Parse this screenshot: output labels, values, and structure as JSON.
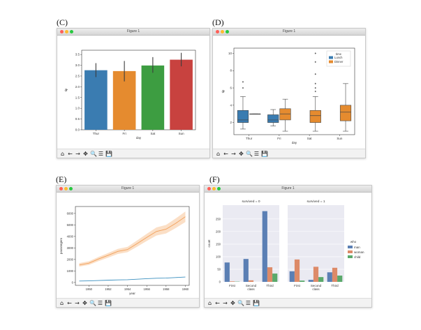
{
  "panels": {
    "C": {
      "label": "(C)",
      "window_title": "Figure 1",
      "chart_data": {
        "type": "bar",
        "categories": [
          "Thur",
          "Fri",
          "Sat",
          "Sun"
        ],
        "values": [
          2.77,
          2.73,
          2.99,
          3.26
        ],
        "ci": [
          [
            2.45,
            3.1
          ],
          [
            2.25,
            3.2
          ],
          [
            2.65,
            3.38
          ],
          [
            2.95,
            3.58
          ]
        ],
        "colors": [
          "#3a7cb1",
          "#e58b2f",
          "#3d9d41",
          "#c8423f"
        ],
        "xlabel": "day",
        "ylabel": "tip",
        "ylim": [
          0,
          3.7
        ],
        "yticks": [
          "0.0",
          "0.5",
          "1.0",
          "1.5",
          "2.0",
          "2.5",
          "3.0",
          "3.5"
        ]
      }
    },
    "D": {
      "label": "(D)",
      "window_title": "Figure 1",
      "chart_data": {
        "type": "box",
        "categories": [
          "Thur",
          "Fri",
          "Sat",
          "Sun"
        ],
        "series": [
          {
            "name": "Lunch",
            "color": "#3a7cb1",
            "boxes": [
              {
                "cat": "Thur",
                "min": 1.25,
                "q1": 2.0,
                "med": 2.3,
                "q3": 3.4,
                "max": 5.0,
                "outliers": [
                  6.0,
                  6.7
                ]
              },
              {
                "cat": "Fri",
                "min": 1.6,
                "q1": 2.0,
                "med": 2.3,
                "q3": 2.9,
                "max": 3.5,
                "outliers": []
              }
            ]
          },
          {
            "name": "Dinner",
            "color": "#e58b2f",
            "boxes": [
              {
                "cat": "Thur",
                "min": 3.0,
                "q1": 3.0,
                "med": 3.0,
                "q3": 3.0,
                "max": 3.0,
                "outliers": []
              },
              {
                "cat": "Fri",
                "min": 1.0,
                "q1": 2.3,
                "med": 3.0,
                "q3": 3.6,
                "max": 4.7,
                "outliers": []
              },
              {
                "cat": "Sat",
                "min": 1.0,
                "q1": 2.0,
                "med": 2.8,
                "q3": 3.4,
                "max": 5.0,
                "outliers": [
                  5.6,
                  6.0,
                  6.5,
                  7.6,
                  9.0,
                  10.0
                ]
              },
              {
                "cat": "Sun",
                "min": 1.0,
                "q1": 2.2,
                "med": 3.2,
                "q3": 4.0,
                "max": 6.5,
                "outliers": []
              }
            ]
          }
        ],
        "legend_title": "time",
        "legend_placement": "top-right",
        "xlabel": "day",
        "ylabel": "tip",
        "ylim": [
          0.6,
          10.6
        ],
        "yticks": [
          "2",
          "4",
          "6",
          "8",
          "10"
        ]
      }
    },
    "E": {
      "label": "(E)",
      "window_title": "Figure 1",
      "chart_data": {
        "type": "line",
        "x": [
          1949,
          1950,
          1951,
          1952,
          1953,
          1954,
          1955,
          1956,
          1957,
          1958,
          1959,
          1960
        ],
        "series": [
          {
            "name": "",
            "color": "#f2a05a",
            "band_color": "#f8c9a0",
            "values": [
              1520,
              1680,
              2040,
              2360,
              2700,
              2860,
              3380,
              3920,
              4430,
              4630,
              5140,
              5710
            ],
            "band": [
              [
                1380,
                1680
              ],
              [
                1520,
                1840
              ],
              [
                1860,
                2220
              ],
              [
                2160,
                2560
              ],
              [
                2480,
                2920
              ],
              [
                2630,
                3090
              ],
              [
                3110,
                3650
              ],
              [
                3610,
                4230
              ],
              [
                4080,
                4780
              ],
              [
                4260,
                5000
              ],
              [
                4730,
                5560
              ],
              [
                5250,
                6170
              ]
            ]
          },
          {
            "name": "",
            "color": "#3a8fbf",
            "values": [
              126,
              140,
              170,
              197,
              225,
              239,
              284,
              328,
              368,
              381,
              428,
              476
            ]
          }
        ],
        "xlabel": "year",
        "ylabel": "passengers",
        "xlim": [
          1948.6,
          1960.4
        ],
        "ylim": [
          -250,
          6600
        ],
        "xticks": [
          1950,
          1952,
          1954,
          1956,
          1958,
          1960
        ],
        "yticks": [
          0,
          1000,
          2000,
          3000,
          4000,
          5000,
          6000
        ]
      }
    },
    "F": {
      "label": "(F)",
      "window_title": "Figure 1",
      "chart_data": {
        "type": "bar",
        "facets": [
          {
            "title": "survived = 0",
            "categories": [
              "First",
              "Second\nclass",
              "Third"
            ],
            "series": [
              {
                "name": "man",
                "values": [
                  77,
                  91,
                  281
                ]
              },
              {
                "name": "woman",
                "values": [
                  2,
                  6,
                  58
                ]
              },
              {
                "name": "child",
                "values": [
                  1,
                  0,
                  33
                ]
              }
            ]
          },
          {
            "title": "survived = 1",
            "categories": [
              "First",
              "Second\nclass",
              "Third"
            ],
            "series": [
              {
                "name": "man",
                "values": [
                  42,
                  8,
                  38
                ]
              },
              {
                "name": "woman",
                "values": [
                  89,
                  60,
                  56
                ]
              },
              {
                "name": "child",
                "values": [
                  5,
                  19,
                  25
                ]
              }
            ]
          }
        ],
        "series_colors": [
          "#5b7fb4",
          "#dd8a68",
          "#5aa96b"
        ],
        "legend_title": "who",
        "legend_entries": [
          "man",
          "woman",
          "child"
        ],
        "legend_placement": "right",
        "ylabel": "count",
        "ylim": [
          0,
          305
        ],
        "yticks": [
          0,
          50,
          100,
          150,
          200,
          250
        ]
      }
    }
  },
  "toolbar": {
    "home": "⌂",
    "back": "←",
    "forward": "→",
    "pan": "✥",
    "zoom": "🔍",
    "configure": "☰",
    "save": "💾"
  }
}
